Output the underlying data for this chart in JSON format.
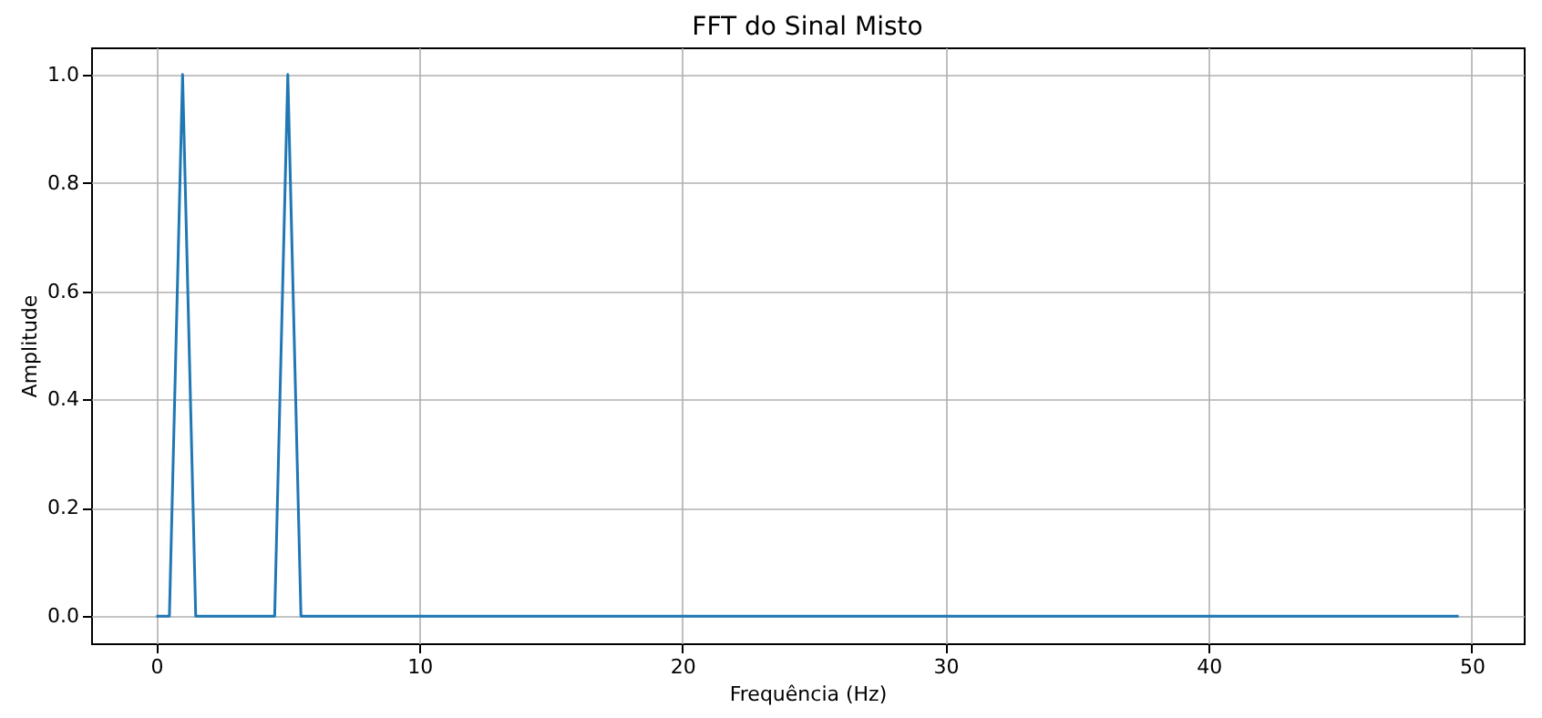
{
  "chart_data": {
    "type": "line",
    "title": "FFT do Sinal Misto",
    "xlabel": "Frequência (Hz)",
    "ylabel": "Amplitude",
    "x": [
      0,
      0.5,
      1,
      1.5,
      4.5,
      5,
      5.5,
      49.5
    ],
    "series": [
      {
        "color": "#1f77b4",
        "values": [
          0,
          0,
          1,
          0,
          0,
          1,
          0,
          0
        ]
      }
    ],
    "xlim": [
      -2.475,
      51.975
    ],
    "xticks": [
      0,
      10,
      20,
      30,
      40,
      50
    ],
    "ylim": [
      -0.05,
      1.05
    ],
    "yticks": [
      {
        "value": 0,
        "label": "0.0"
      },
      {
        "value": 0.2,
        "label": "0.2"
      },
      {
        "value": 0.4,
        "label": "0.4"
      },
      {
        "value": 0.6,
        "label": "0.6"
      },
      {
        "value": 0.8,
        "label": "0.8"
      },
      {
        "value": 1,
        "label": "1.0"
      }
    ],
    "grid": true,
    "marker": "none",
    "line_style": "solid"
  }
}
